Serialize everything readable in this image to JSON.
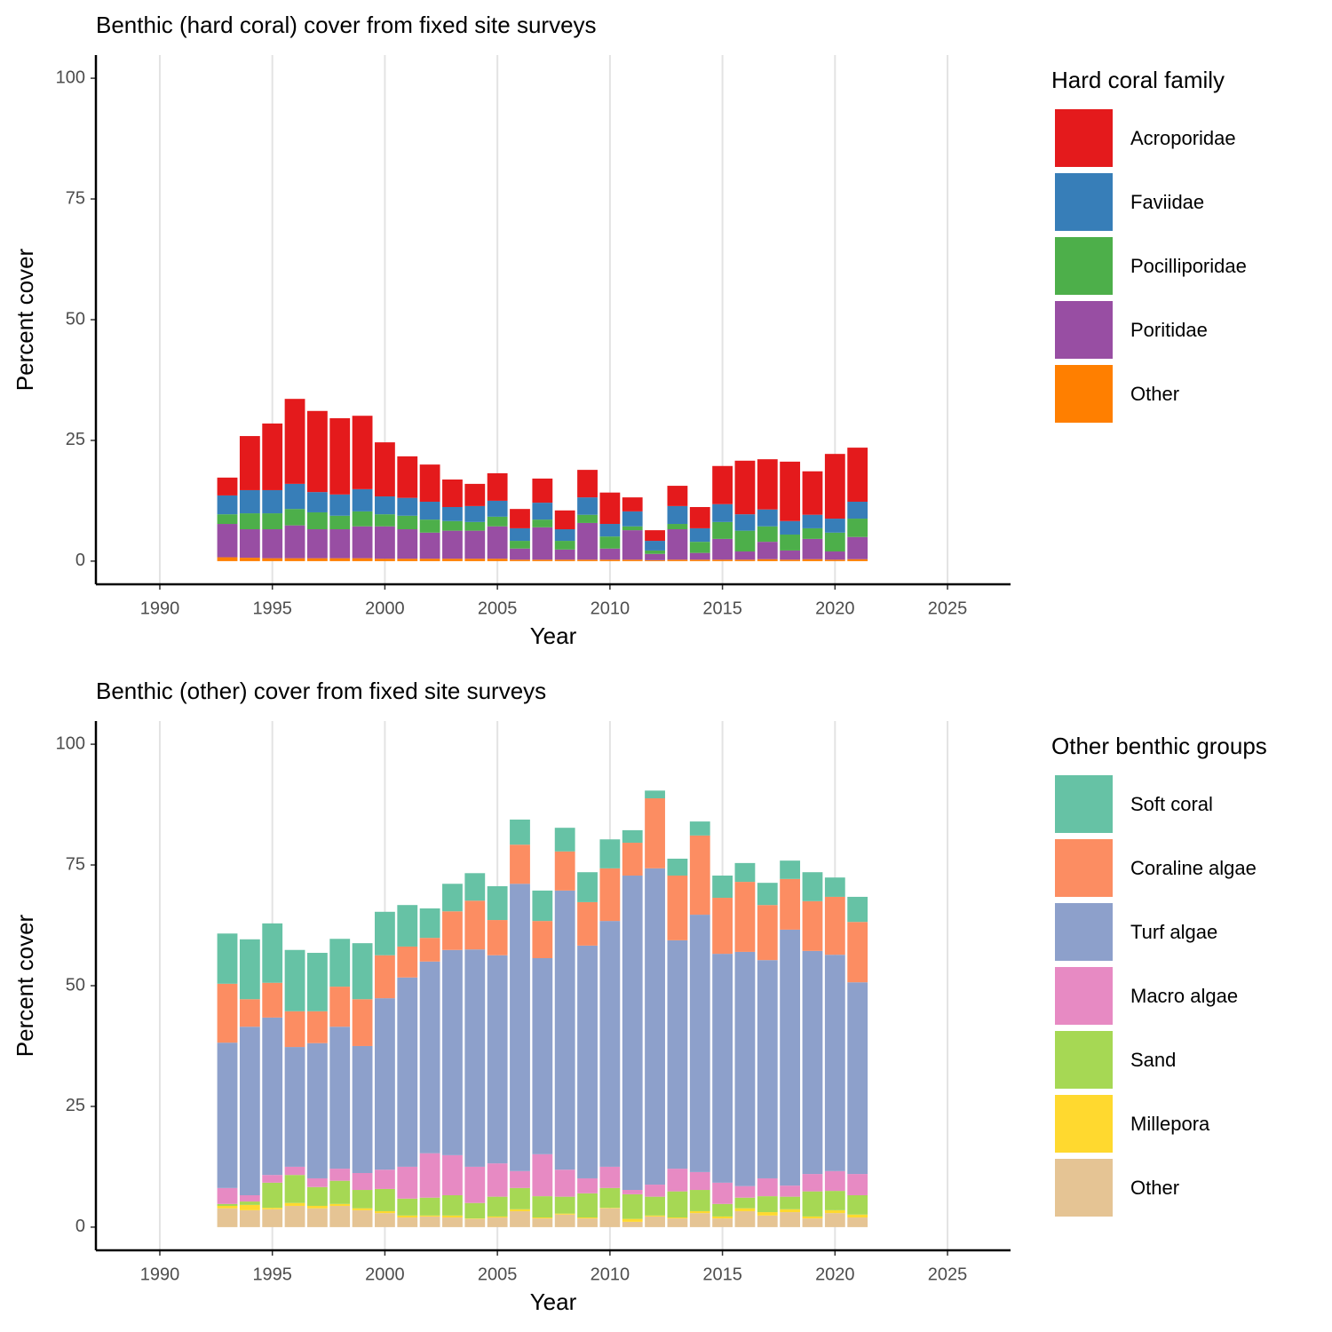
{
  "chart_data": [
    {
      "type": "stacked_bar",
      "title": "Benthic (hard coral) cover from fixed site surveys",
      "xlabel": "Year",
      "ylabel": "Percent cover",
      "legend_title": "Hard coral family",
      "legend_position": "right",
      "grid": "vertical",
      "x": [
        1993,
        1994,
        1995,
        1996,
        1997,
        1998,
        1999,
        2000,
        2001,
        2002,
        2003,
        2004,
        2005,
        2006,
        2007,
        2008,
        2009,
        2010,
        2011,
        2012,
        2013,
        2014,
        2015,
        2016,
        2017,
        2018,
        2019,
        2020,
        2021
      ],
      "series": [
        {
          "name": "Acroporidae",
          "color": "#e41a1c",
          "values": [
            3.7,
            11.2,
            13.8,
            17.6,
            16.8,
            15.8,
            15.2,
            11.2,
            8.6,
            7.7,
            5.7,
            4.6,
            5.7,
            4.0,
            5.0,
            3.9,
            5.7,
            6.5,
            2.9,
            2.2,
            4.2,
            4.4,
            7.9,
            11.1,
            10.4,
            12.3,
            9.0,
            13.4,
            11.2
          ]
        },
        {
          "name": "Faviidae",
          "color": "#377eb8",
          "values": [
            3.9,
            4.8,
            4.8,
            5.2,
            4.2,
            4.4,
            4.6,
            3.7,
            3.7,
            3.7,
            2.9,
            3.3,
            3.3,
            2.6,
            3.5,
            2.4,
            3.6,
            2.6,
            3.1,
            2.0,
            3.7,
            2.8,
            3.7,
            3.4,
            3.5,
            2.8,
            2.8,
            2.9,
            3.5
          ]
        },
        {
          "name": "Pocilliporidae",
          "color": "#4daf4a",
          "values": [
            2.0,
            3.3,
            3.3,
            3.4,
            3.5,
            2.8,
            3.1,
            2.5,
            2.8,
            2.7,
            2.0,
            1.8,
            2.0,
            1.6,
            1.6,
            1.8,
            1.7,
            2.5,
            0.8,
            0.7,
            1.1,
            2.3,
            3.5,
            4.3,
            3.2,
            3.3,
            2.2,
            3.9,
            3.8
          ]
        },
        {
          "name": "Poritidae",
          "color": "#984ea3",
          "values": [
            6.9,
            5.9,
            6.0,
            6.8,
            6.0,
            6.0,
            6.6,
            6.7,
            6.1,
            5.4,
            5.8,
            5.8,
            6.7,
            2.3,
            6.7,
            2.1,
            7.6,
            2.3,
            6.1,
            1.3,
            6.3,
            1.4,
            4.3,
            1.7,
            3.6,
            1.9,
            4.2,
            1.7,
            4.6
          ]
        },
        {
          "name": "Other",
          "color": "#ff7f00",
          "values": [
            0.8,
            0.7,
            0.6,
            0.6,
            0.6,
            0.6,
            0.6,
            0.5,
            0.5,
            0.5,
            0.5,
            0.5,
            0.5,
            0.3,
            0.3,
            0.3,
            0.3,
            0.3,
            0.3,
            0.2,
            0.3,
            0.3,
            0.3,
            0.3,
            0.4,
            0.3,
            0.4,
            0.3,
            0.4
          ]
        }
      ],
      "xlim": [
        1987.16,
        2027.8
      ],
      "xticks": [
        1990,
        1995,
        2000,
        2005,
        2010,
        2015,
        2020,
        2025
      ],
      "ylim": [
        -4.8,
        104.8
      ],
      "yticks": [
        0,
        25,
        50,
        75,
        100
      ]
    },
    {
      "type": "stacked_bar",
      "title": "Benthic (other) cover from fixed site surveys",
      "xlabel": "Year",
      "ylabel": "Percent cover",
      "legend_title": "Other benthic groups",
      "legend_position": "right",
      "grid": "vertical",
      "x": [
        1993,
        1994,
        1995,
        1996,
        1997,
        1998,
        1999,
        2000,
        2001,
        2002,
        2003,
        2004,
        2005,
        2006,
        2007,
        2008,
        2009,
        2010,
        2011,
        2012,
        2013,
        2014,
        2015,
        2016,
        2017,
        2018,
        2019,
        2020,
        2021
      ],
      "series": [
        {
          "name": "Soft coral",
          "color": "#66c2a5",
          "values": [
            10.4,
            12.4,
            12.3,
            12.7,
            12.1,
            9.9,
            11.6,
            9.0,
            8.6,
            6.1,
            5.7,
            5.7,
            7.0,
            5.2,
            6.3,
            4.9,
            6.2,
            6.0,
            2.6,
            1.6,
            3.5,
            2.9,
            4.6,
            3.9,
            4.6,
            3.8,
            6.0,
            4.0,
            5.2
          ]
        },
        {
          "name": "Coraline algae",
          "color": "#fc8d62",
          "values": [
            12.2,
            5.7,
            7.2,
            7.4,
            6.6,
            8.3,
            9.7,
            8.9,
            6.4,
            4.9,
            8.0,
            10.1,
            7.3,
            8.1,
            7.7,
            8.1,
            9.0,
            10.9,
            6.8,
            14.5,
            13.4,
            16.4,
            11.6,
            14.5,
            11.4,
            10.5,
            10.3,
            12.0,
            12.5
          ]
        },
        {
          "name": "Turf algae",
          "color": "#8da0cb",
          "values": [
            30.1,
            34.9,
            32.6,
            24.8,
            28.0,
            29.4,
            26.3,
            35.5,
            39.2,
            39.7,
            42.5,
            45.0,
            43.1,
            59.5,
            40.6,
            57.8,
            48.2,
            50.9,
            65.1,
            65.5,
            47.3,
            53.3,
            47.4,
            48.5,
            45.2,
            53.0,
            46.2,
            44.8,
            39.7
          ]
        },
        {
          "name": "Macro algae",
          "color": "#e78ac3",
          "values": [
            3.3,
            1.3,
            1.6,
            1.7,
            1.8,
            2.5,
            3.5,
            4.0,
            6.6,
            9.2,
            8.3,
            7.5,
            6.9,
            3.5,
            8.7,
            5.6,
            3.1,
            4.4,
            0.9,
            2.5,
            4.7,
            3.7,
            4.4,
            2.4,
            3.7,
            2.3,
            3.6,
            4.1,
            4.4
          ]
        },
        {
          "name": "Sand",
          "color": "#a6d854",
          "values": [
            0.4,
            0.7,
            5.2,
            5.8,
            3.9,
            4.8,
            3.8,
            4.6,
            3.5,
            3.7,
            4.2,
            3.2,
            4.1,
            4.4,
            4.4,
            3.5,
            5.0,
            4.1,
            5.1,
            3.9,
            5.4,
            4.4,
            2.6,
            2.2,
            3.3,
            2.6,
            5.2,
            4.0,
            4.0
          ]
        },
        {
          "name": "Millepora",
          "color": "#ffd92f",
          "values": [
            0.5,
            1.1,
            0.3,
            0.6,
            0.5,
            0.4,
            0.4,
            0.4,
            0.4,
            0.2,
            0.4,
            0.1,
            0.2,
            0.4,
            0.2,
            0.2,
            0.2,
            0.1,
            0.6,
            0.2,
            0.2,
            0.4,
            0.4,
            0.6,
            0.7,
            0.6,
            0.4,
            0.6,
            0.6
          ]
        },
        {
          "name": "Other",
          "color": "#e5c494",
          "values": [
            3.9,
            3.5,
            3.7,
            4.4,
            3.9,
            4.4,
            3.5,
            2.9,
            2.0,
            2.2,
            2.0,
            1.7,
            2.0,
            3.3,
            1.8,
            2.6,
            1.8,
            3.9,
            1.1,
            2.2,
            1.8,
            2.9,
            1.8,
            3.3,
            2.4,
            3.1,
            1.8,
            2.9,
            2.0
          ]
        }
      ],
      "xlim": [
        1987.16,
        2027.8
      ],
      "xticks": [
        1990,
        1995,
        2000,
        2005,
        2010,
        2015,
        2020,
        2025
      ],
      "ylim": [
        -4.8,
        104.8
      ],
      "yticks": [
        0,
        25,
        50,
        75,
        100
      ]
    }
  ]
}
